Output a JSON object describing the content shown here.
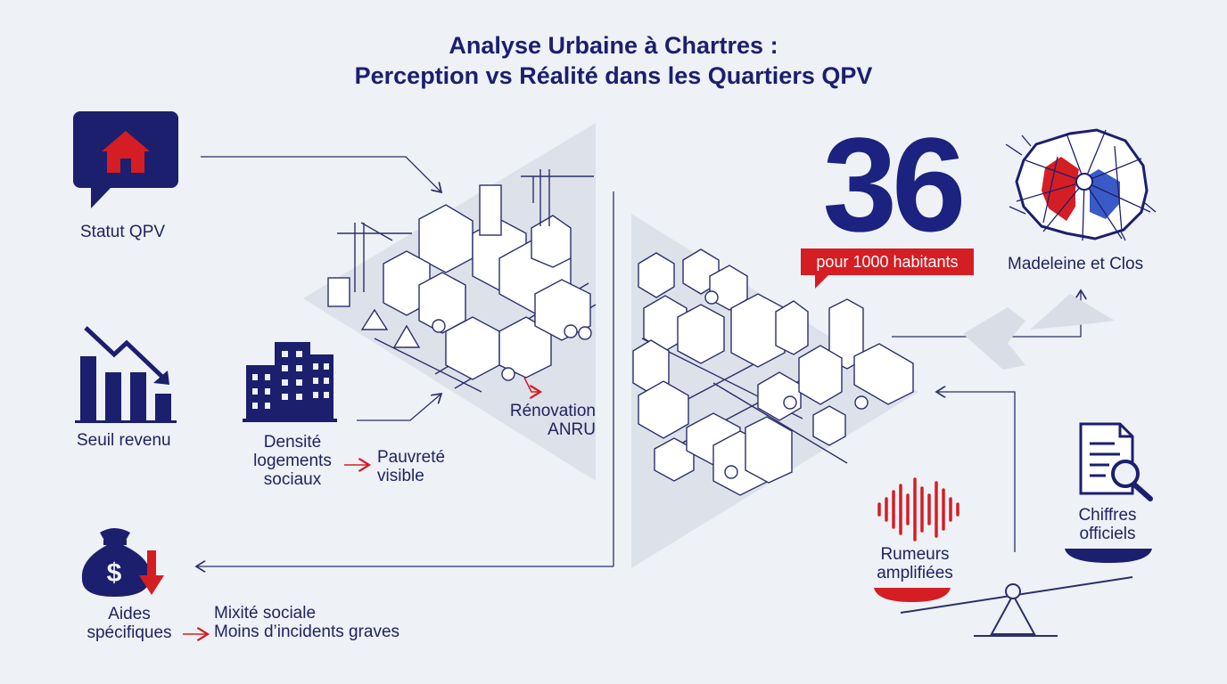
{
  "title": {
    "line1": "Analyse Urbaine à Chartres :",
    "line2": "Perception vs Réalité dans les Quartiers QPV"
  },
  "left_factors": {
    "statut": "Statut QPV",
    "seuil": "Seuil revenu",
    "densite": [
      "Densité",
      "logements",
      "sociaux"
    ],
    "pauvrete": [
      "Pauvreté",
      "visible"
    ],
    "aides": [
      "Aides",
      "spécifiques"
    ],
    "mixite": [
      "Mixité sociale",
      "Moins d’incidents graves"
    ]
  },
  "renovation": [
    "Rénovation",
    "ANRU"
  ],
  "stat": {
    "value": "36",
    "unit": "pour 1000 habitants"
  },
  "map_label": "Madeleine et Clos",
  "balance": {
    "left": [
      "Rumeurs",
      "amplifiées"
    ],
    "right": [
      "Chiffres",
      "officiels"
    ]
  },
  "colors": {
    "navy": "#1b1f6e",
    "red": "#d51d24",
    "blue": "#3a5bc7",
    "line": "#2a2f6a",
    "background": "#eef1f6"
  }
}
